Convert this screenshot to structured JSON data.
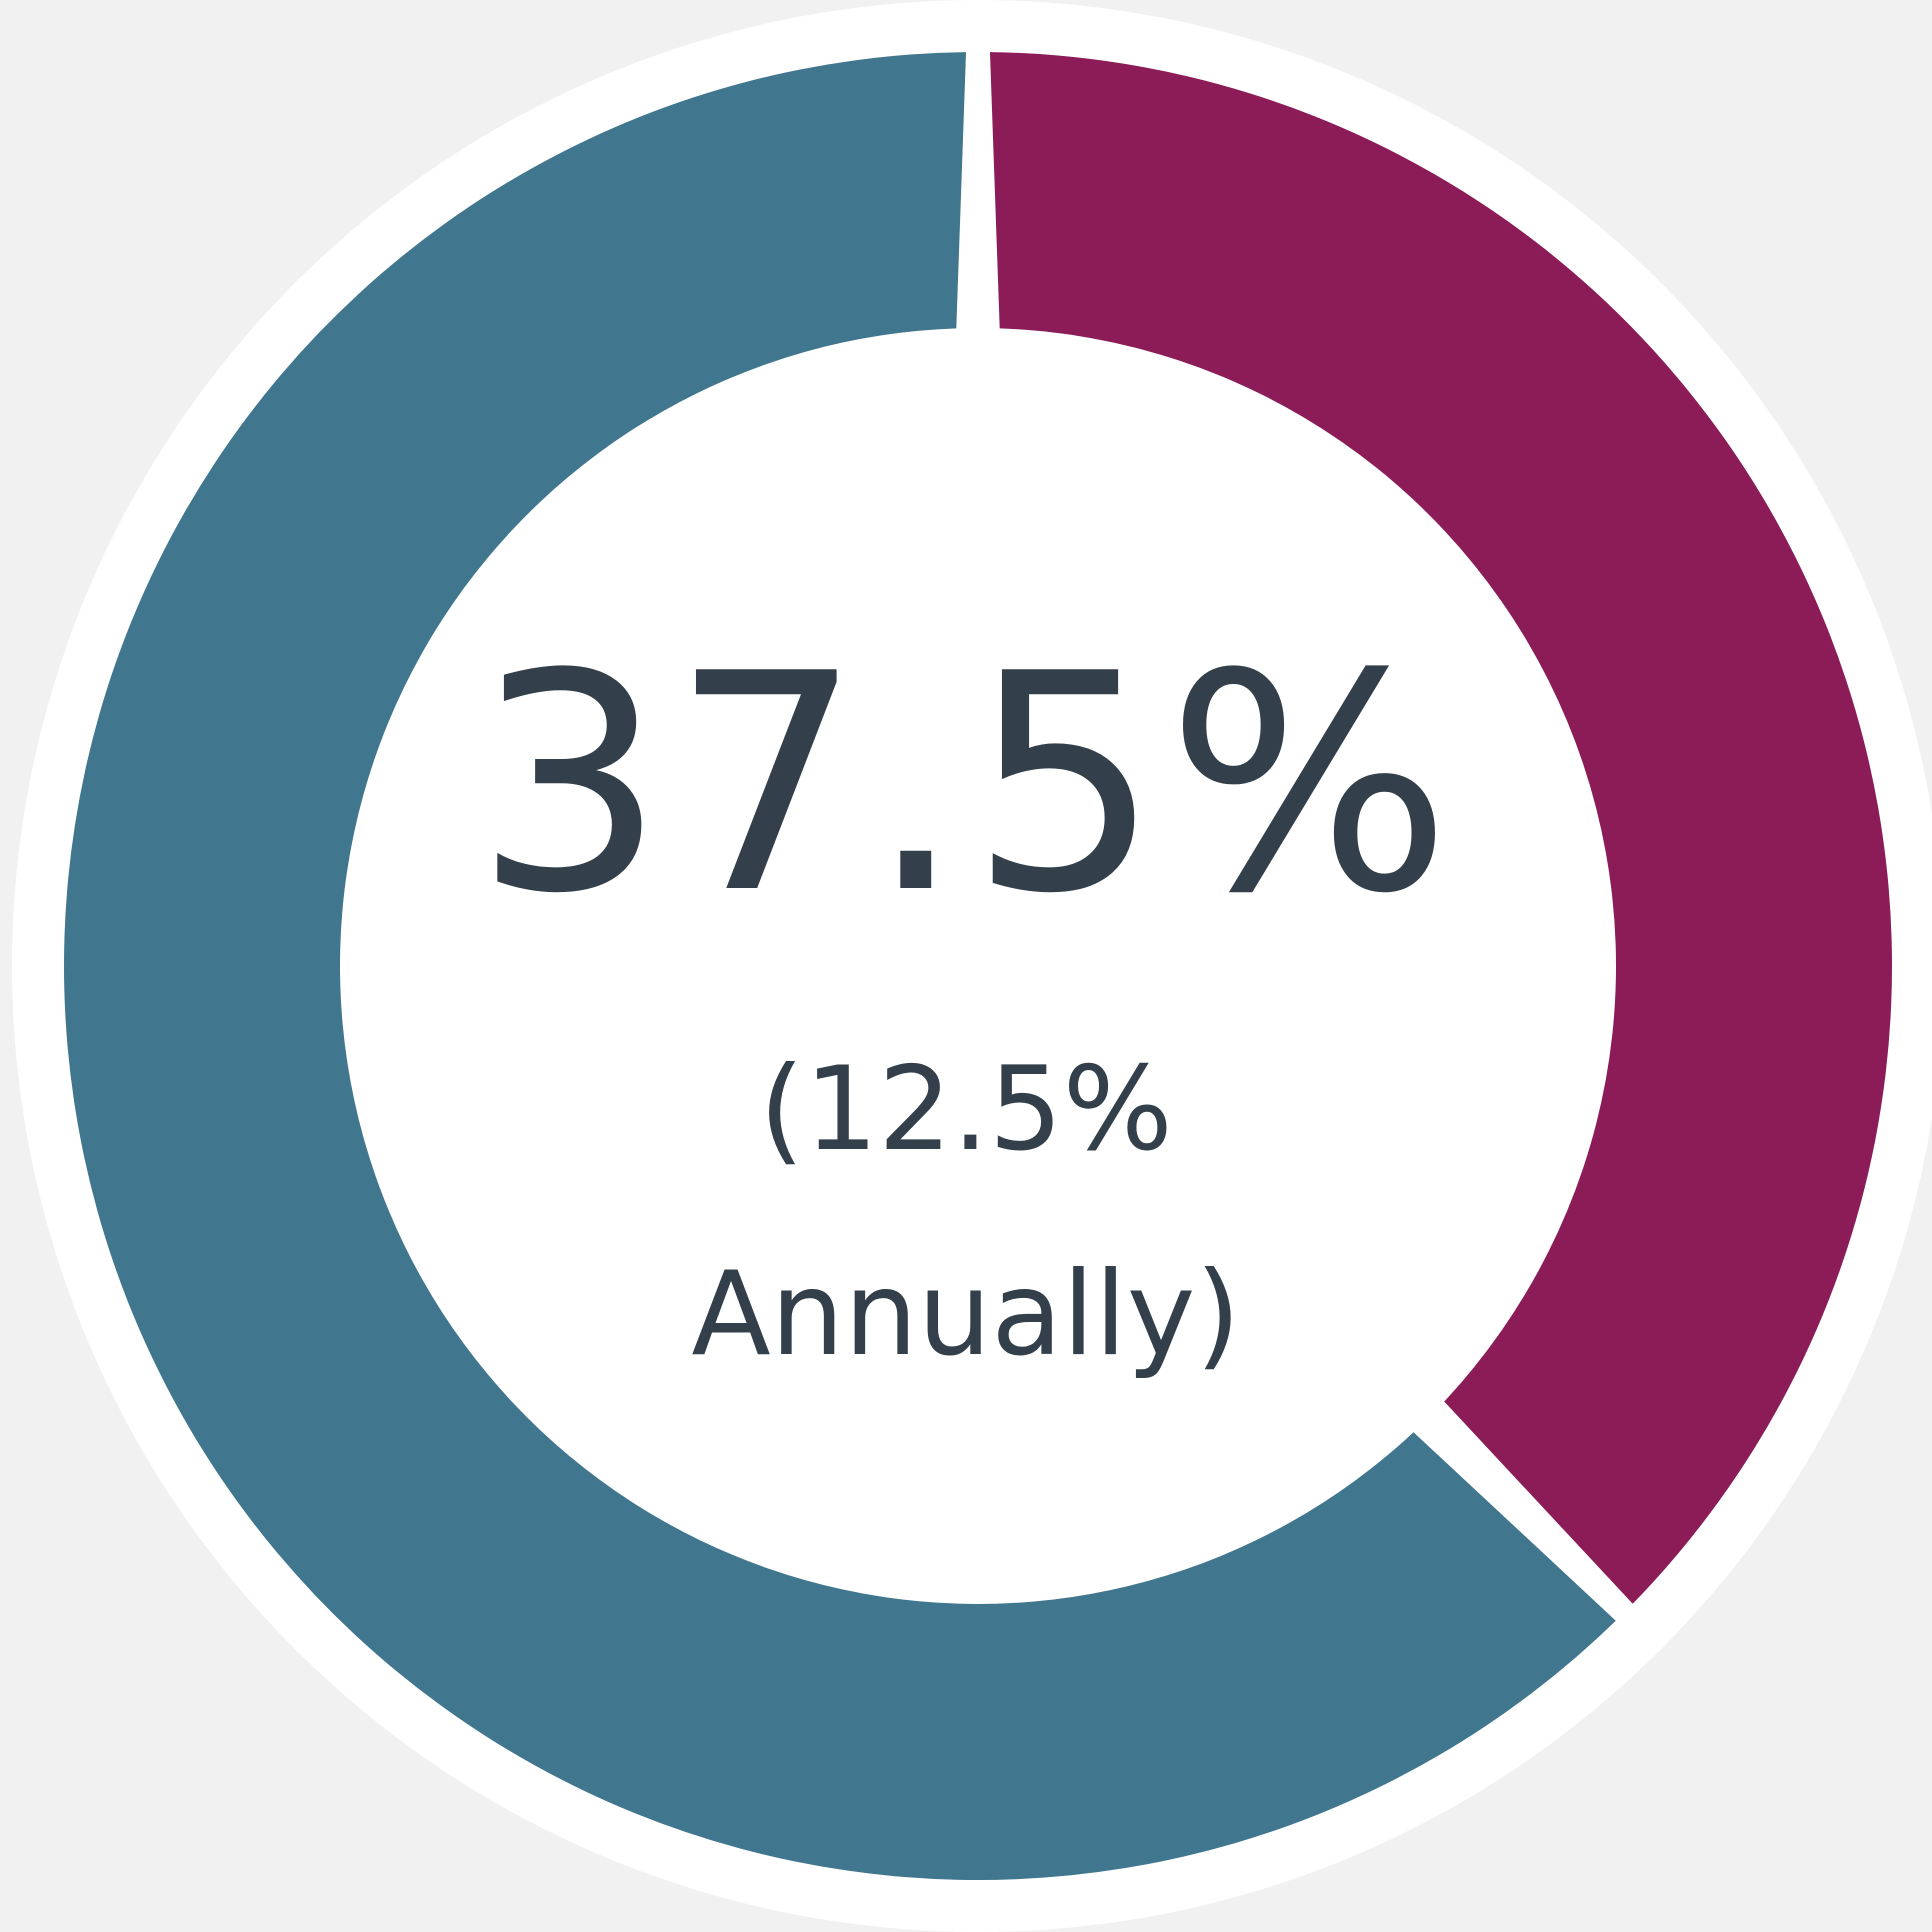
{
  "chart_data": {
    "type": "pie",
    "variant": "donut",
    "slices": [
      {
        "label": "",
        "value": 37.5,
        "color": "#8c1c58"
      },
      {
        "label": "",
        "value": 62.5,
        "color": "#41768f"
      }
    ],
    "center_label": {
      "value": "37.5%",
      "line1": "(12.5%",
      "line2": "Annually)"
    },
    "colors": {
      "background": "#f1f1f1",
      "ring": "#ffffff",
      "text": "#333f4a",
      "highlight": "#8c1c58",
      "remainder": "#41768f"
    }
  }
}
